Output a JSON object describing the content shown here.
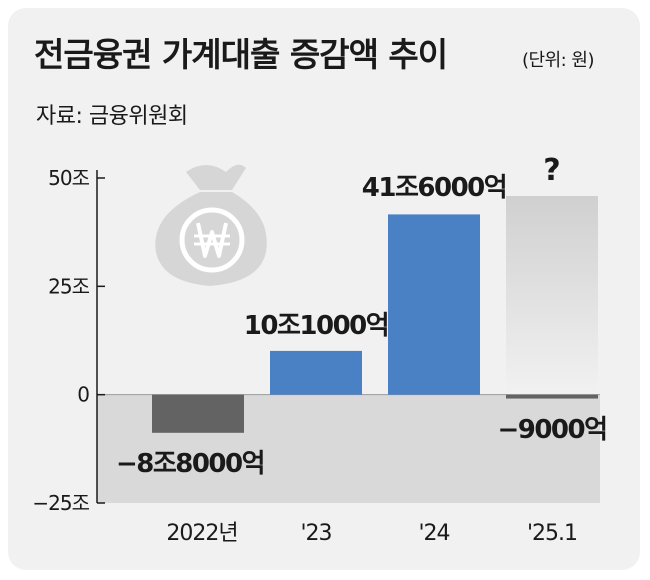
{
  "header": {
    "title": "전금융권 가계대출 증감액 추이",
    "unit": "(단위: 원)",
    "source": "자료: 금융위원회"
  },
  "colors": {
    "positive": "#4a80c4",
    "negative": "#636363",
    "projection": "#dcdcdc",
    "negative_zone": "#d9d9d9",
    "frame": "#f1f1f1"
  },
  "icons": [
    "money-bag-won-icon"
  ],
  "chart_data": {
    "type": "bar",
    "title": "전금융권 가계대출 증감액 추이",
    "unit": "(단위: 원)",
    "categories": [
      "2022년",
      "'23",
      "'24",
      "'25.1"
    ],
    "values": [
      -8.8,
      10.1,
      41.6,
      -0.9
    ],
    "value_unit": "조",
    "data_labels": [
      "−8조8000억",
      "10조1000억",
      "41조6000억",
      "−9000억"
    ],
    "annotation": "?",
    "yticks": [
      50,
      25,
      0,
      -25
    ],
    "ytick_labels": [
      "50조",
      "25조",
      "0",
      "−25조"
    ],
    "ylim": [
      -25,
      50
    ],
    "grid": false
  }
}
